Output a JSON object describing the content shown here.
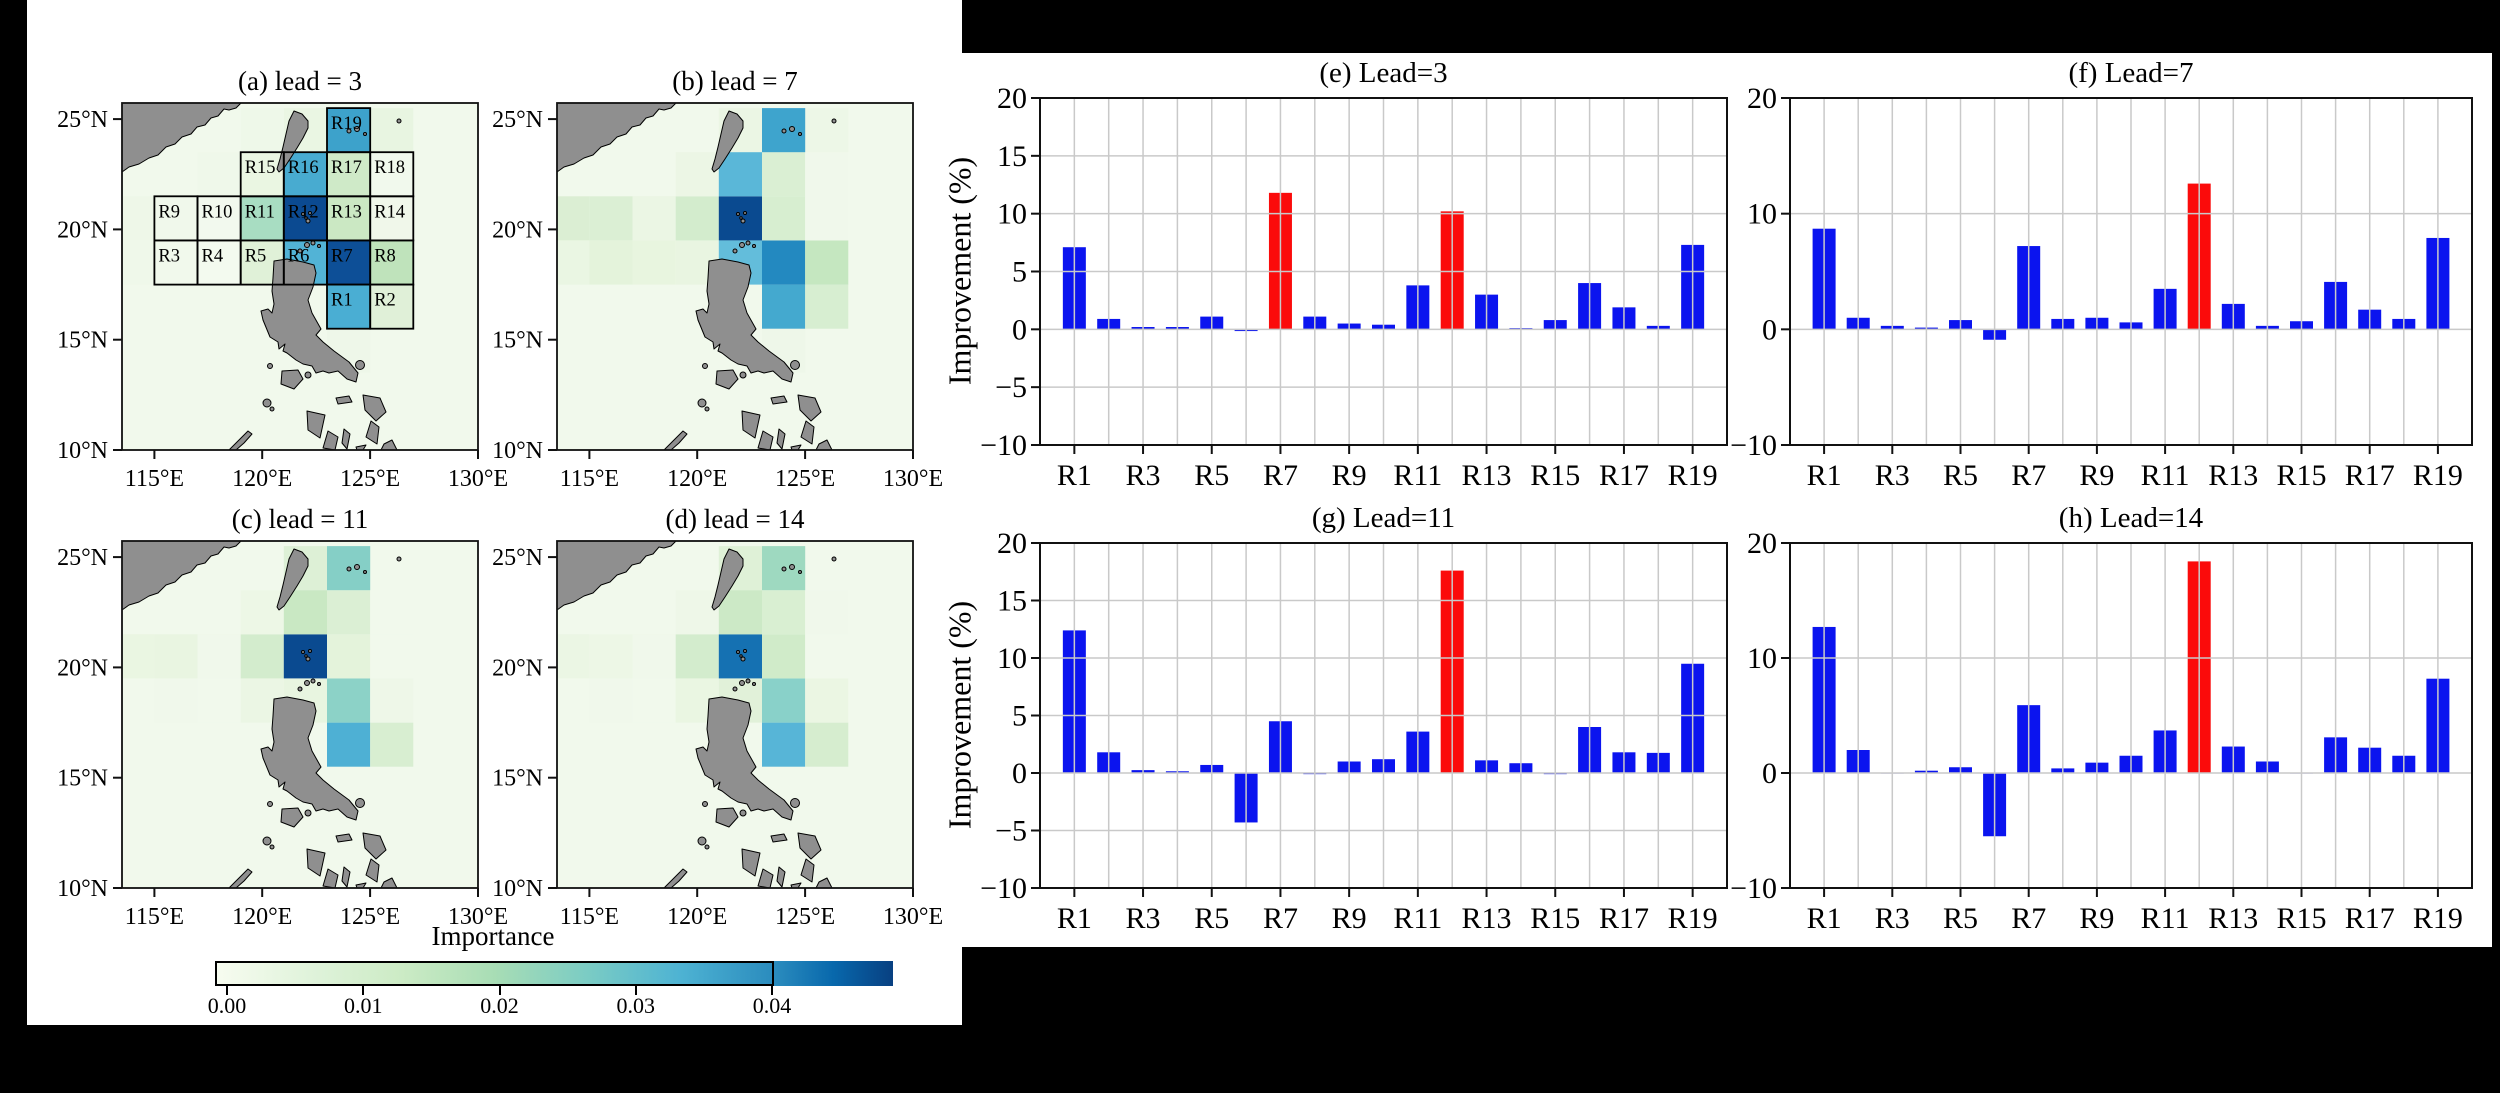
{
  "figure": {
    "description": "Feature importance maps and improvement bar charts",
    "background": "#000000"
  },
  "colors": {
    "bar_blue": "#0b14ef",
    "bar_red": "#fb0b0b",
    "land_gray": "#8f8f8f",
    "grid_gray": "#c9c9c9",
    "spine_black": "#111111",
    "sea_default": "#f1f9ec",
    "cb_main_stops": [
      "#f7fcf0",
      "#e0f3db",
      "#ccebc5",
      "#a8ddb5",
      "#7bccc4",
      "#4eb3d3",
      "#2b8cbe"
    ],
    "cb_ext_stops": [
      "#2b8cbe",
      "#0868ac",
      "#084081"
    ]
  },
  "maps": {
    "axis": {
      "y_ticks": [
        "25°N",
        "20°N",
        "15°N",
        "10°N"
      ],
      "x_ticks": [
        "115°E",
        "120°E",
        "125°E",
        "130°E"
      ]
    },
    "region_labels": [
      "R1",
      "R2",
      "R3",
      "R4",
      "R5",
      "R6",
      "R7",
      "R8",
      "R9",
      "R10",
      "R11",
      "R12",
      "R13",
      "R14",
      "R15",
      "R16",
      "R17",
      "R18",
      "R19"
    ],
    "region_cells": {
      "R1": [
        5,
        5
      ],
      "R2": [
        6,
        5
      ],
      "R3": [
        1,
        4
      ],
      "R4": [
        2,
        4
      ],
      "R5": [
        3,
        4
      ],
      "R6": [
        4,
        4
      ],
      "R7": [
        5,
        4
      ],
      "R8": [
        6,
        4
      ],
      "R9": [
        1,
        3
      ],
      "R10": [
        2,
        3
      ],
      "R11": [
        3,
        3
      ],
      "R12": [
        4,
        3
      ],
      "R13": [
        5,
        3
      ],
      "R14": [
        6,
        3
      ],
      "R15": [
        3,
        2
      ],
      "R16": [
        4,
        2
      ],
      "R17": [
        5,
        2
      ],
      "R18": [
        6,
        2
      ],
      "R19": [
        5,
        1
      ]
    },
    "panels": [
      {
        "id": "a",
        "title": "(a) lead = 3",
        "show_regions": true,
        "region_colors": {
          "R1": "#4aaed3",
          "R2": "#e0f0d8",
          "R3": "#f1f9ec",
          "R4": "#f3faef",
          "R5": "#e0f1d8",
          "R6": "#52b3d6",
          "R7": "#0d4f97",
          "R8": "#bfe3bb",
          "R9": "#f0f8eb",
          "R10": "#f2f9ee",
          "R11": "#a8ddc2",
          "R12": "#0b4a91",
          "R13": "#cbe8c3",
          "R14": "#f0f7ea",
          "R15": "#eaf6e2",
          "R16": "#48abd0",
          "R17": "#cfeac8",
          "R18": "#f1f9ed",
          "R19": "#3da2cb"
        },
        "extra_cells": [
          [
            4,
            1,
            "#eaf6e3"
          ],
          [
            6,
            1,
            "#e8f5e1"
          ],
          [
            3,
            1,
            "#eef8e9"
          ],
          [
            0,
            3,
            "#eef7e8"
          ],
          [
            0,
            4,
            "#eff8ea"
          ],
          [
            2,
            2,
            "#eff8ea"
          ],
          [
            5,
            6,
            "#eef7e9"
          ]
        ]
      },
      {
        "id": "b",
        "title": "(b) lead = 7",
        "show_regions": false,
        "region_colors": {
          "R1": "#44a9cf",
          "R2": "#d7eed1",
          "R3": "#e4f3db",
          "R4": "#e8f5df",
          "R5": "#e9f5e1",
          "R6": "#63bddb",
          "R7": "#2389c0",
          "R8": "#c5e7c0",
          "R9": "#dbefd4",
          "R10": "#ebf6e4",
          "R11": "#d3eccd",
          "R12": "#0a4a90",
          "R13": "#d7eed0",
          "R14": "#f0f8eb",
          "R15": "#ecf6e5",
          "R16": "#5ab7d8",
          "R17": "#daefd3",
          "R18": "#f0f8eb",
          "R19": "#3ea4cd"
        },
        "extra_cells": [
          [
            0,
            3,
            "#dbeed3"
          ],
          [
            0,
            4,
            "#eaf6e3"
          ],
          [
            2,
            3,
            "#eaf6e3"
          ],
          [
            4,
            1,
            "#ebf6e4"
          ],
          [
            6,
            1,
            "#edf7e7"
          ],
          [
            5,
            6,
            "#eef7e9"
          ]
        ]
      },
      {
        "id": "c",
        "title": "(c) lead = 11",
        "show_regions": false,
        "region_colors": {
          "R1": "#4eb0d4",
          "R2": "#d8eed1",
          "R3": "#f0f8eb",
          "R4": "#f1f9ec",
          "R5": "#ebf6e4",
          "R6": "#e8f5e0",
          "R7": "#8cd2c7",
          "R8": "#eef7e8",
          "R9": "#e9f5e1",
          "R10": "#f0f8eb",
          "R11": "#d3eccd",
          "R12": "#0a4a90",
          "R13": "#e4f3db",
          "R14": "#f1f9ec",
          "R15": "#edf7e6",
          "R16": "#c9e8c3",
          "R17": "#dbefd4",
          "R18": "#f1f9ec",
          "R19": "#85cfc6"
        },
        "extra_cells": [
          [
            0,
            3,
            "#eaf6e2"
          ],
          [
            4,
            1,
            "#ddf0d6"
          ],
          [
            2,
            3,
            "#eef7e8"
          ]
        ]
      },
      {
        "id": "d",
        "title": "(d) lead = 14",
        "show_regions": false,
        "region_colors": {
          "R1": "#57b5d7",
          "R2": "#d6edcf",
          "R3": "#f0f8eb",
          "R4": "#f1f9ec",
          "R5": "#eaf6e2",
          "R6": "#e1f1d9",
          "R7": "#89d1c9",
          "R8": "#ebf6e3",
          "R9": "#edf7e6",
          "R10": "#f0f8eb",
          "R11": "#d3eccd",
          "R12": "#1571b2",
          "R13": "#d0ebc9",
          "R14": "#f1f9ec",
          "R15": "#eef7e8",
          "R16": "#cce9c6",
          "R17": "#d9efd2",
          "R18": "#f0f8eb",
          "R19": "#9ed9c0"
        },
        "extra_cells": [
          [
            4,
            1,
            "#dff1d7"
          ],
          [
            0,
            3,
            "#ebf6e4"
          ],
          [
            2,
            3,
            "#eef7e8"
          ]
        ]
      }
    ],
    "colorbar": {
      "title": "Importance",
      "tick_labels": [
        "0.00",
        "0.01",
        "0.02",
        "0.03",
        "0.04"
      ]
    }
  },
  "charts": {
    "ylabel": "Improvement (%)"
  },
  "chart_data": [
    {
      "type": "bar",
      "id": "e",
      "title": "(e) Lead=3",
      "categories": [
        "R1",
        "R2",
        "R3",
        "R4",
        "R5",
        "R6",
        "R7",
        "R8",
        "R9",
        "R10",
        "R11",
        "R12",
        "R13",
        "R14",
        "R15",
        "R16",
        "R17",
        "R18",
        "R19"
      ],
      "values": [
        7.1,
        0.9,
        0.2,
        0.2,
        1.1,
        -0.15,
        11.8,
        1.1,
        0.5,
        0.4,
        3.8,
        10.2,
        3.0,
        0.1,
        0.8,
        4.0,
        1.9,
        0.3,
        7.3
      ],
      "red_indices": [
        6,
        11
      ],
      "xlabel": "",
      "ylabel": "Improvement (%)",
      "ylim": [
        -10,
        20
      ],
      "ytick_labels": [
        "20",
        "15",
        "10",
        "5",
        "0",
        "−5",
        "−10"
      ],
      "ytick_values": [
        20,
        15,
        10,
        5,
        0,
        -5,
        -10
      ],
      "xtick_shown": [
        "R1",
        "R3",
        "R5",
        "R7",
        "R9",
        "R11",
        "R13",
        "R15",
        "R17",
        "R19"
      ],
      "grid": true,
      "legend": false
    },
    {
      "type": "bar",
      "id": "f",
      "title": "(f) Lead=7",
      "categories": [
        "R1",
        "R2",
        "R3",
        "R4",
        "R5",
        "R6",
        "R7",
        "R8",
        "R9",
        "R10",
        "R11",
        "R12",
        "R13",
        "R14",
        "R15",
        "R16",
        "R17",
        "R18",
        "R19"
      ],
      "values": [
        8.7,
        1.0,
        0.3,
        0.15,
        0.8,
        -0.9,
        7.2,
        0.9,
        1.0,
        0.6,
        3.5,
        12.6,
        2.2,
        0.3,
        0.7,
        4.1,
        1.7,
        0.9,
        7.9
      ],
      "red_indices": [
        11
      ],
      "xlabel": "",
      "ylabel": "Improvement (%)",
      "ylim": [
        -10,
        20
      ],
      "ytick_labels": [
        "20",
        "10",
        "0",
        "−10"
      ],
      "ytick_values": [
        20,
        10,
        0,
        -10
      ],
      "xtick_shown": [
        "R1",
        "R3",
        "R5",
        "R7",
        "R9",
        "R11",
        "R13",
        "R15",
        "R17",
        "R19"
      ],
      "grid": true,
      "legend": false
    },
    {
      "type": "bar",
      "id": "g",
      "title": "(g) Lead=11",
      "categories": [
        "R1",
        "R2",
        "R3",
        "R4",
        "R5",
        "R6",
        "R7",
        "R8",
        "R9",
        "R10",
        "R11",
        "R12",
        "R13",
        "R14",
        "R15",
        "R16",
        "R17",
        "R18",
        "R19"
      ],
      "values": [
        12.4,
        1.8,
        0.25,
        0.15,
        0.7,
        -4.3,
        4.5,
        -0.1,
        1.0,
        1.2,
        3.6,
        17.6,
        1.1,
        0.85,
        -0.1,
        4.0,
        1.8,
        1.75,
        9.5
      ],
      "red_indices": [
        11
      ],
      "xlabel": "",
      "ylabel": "Improvement (%)",
      "ylim": [
        -10,
        20
      ],
      "ytick_labels": [
        "20",
        "15",
        "10",
        "5",
        "0",
        "−5",
        "−10"
      ],
      "ytick_values": [
        20,
        15,
        10,
        5,
        0,
        -5,
        -10
      ],
      "xtick_shown": [
        "R1",
        "R3",
        "R5",
        "R7",
        "R9",
        "R11",
        "R13",
        "R15",
        "R17",
        "R19"
      ],
      "grid": true,
      "legend": false
    },
    {
      "type": "bar",
      "id": "h",
      "title": "(h) Lead=14",
      "categories": [
        "R1",
        "R2",
        "R3",
        "R4",
        "R5",
        "R6",
        "R7",
        "R8",
        "R9",
        "R10",
        "R11",
        "R12",
        "R13",
        "R14",
        "R15",
        "R16",
        "R17",
        "R18",
        "R19"
      ],
      "values": [
        12.7,
        2.0,
        -0.05,
        0.2,
        0.5,
        -5.5,
        5.9,
        0.4,
        0.9,
        1.5,
        3.7,
        18.4,
        2.3,
        1.0,
        -0.05,
        3.1,
        2.2,
        1.5,
        8.2
      ],
      "red_indices": [
        11
      ],
      "xlabel": "",
      "ylabel": "Improvement (%)",
      "ylim": [
        -10,
        20
      ],
      "ytick_labels": [
        "20",
        "10",
        "0",
        "−10"
      ],
      "ytick_values": [
        20,
        10,
        0,
        -10
      ],
      "xtick_shown": [
        "R1",
        "R3",
        "R5",
        "R7",
        "R9",
        "R11",
        "R13",
        "R15",
        "R17",
        "R19"
      ],
      "grid": true,
      "legend": false
    }
  ]
}
